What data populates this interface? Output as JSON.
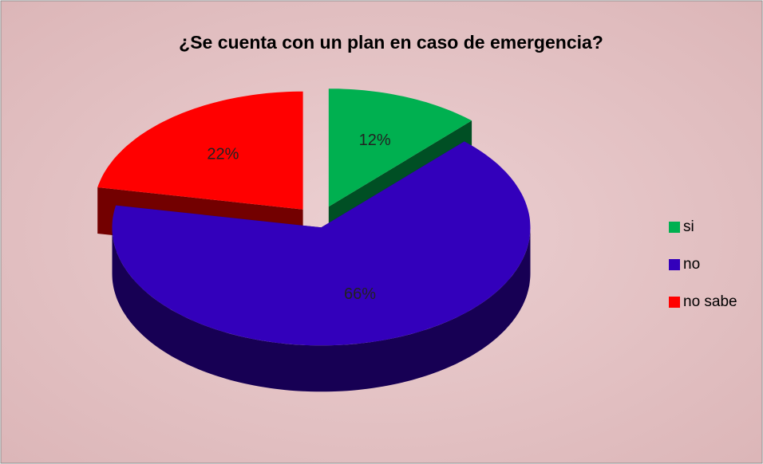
{
  "chart_data": {
    "type": "pie",
    "title": "¿Se cuenta con un plan en caso de emergencia?",
    "categories": [
      "si",
      "no",
      "no sabe"
    ],
    "values": [
      12,
      66,
      22
    ],
    "value_labels": [
      "12%",
      "66%",
      "22%"
    ],
    "colors": [
      "#00b050",
      "#3300bb",
      "#ff0000"
    ],
    "legend": "right"
  }
}
